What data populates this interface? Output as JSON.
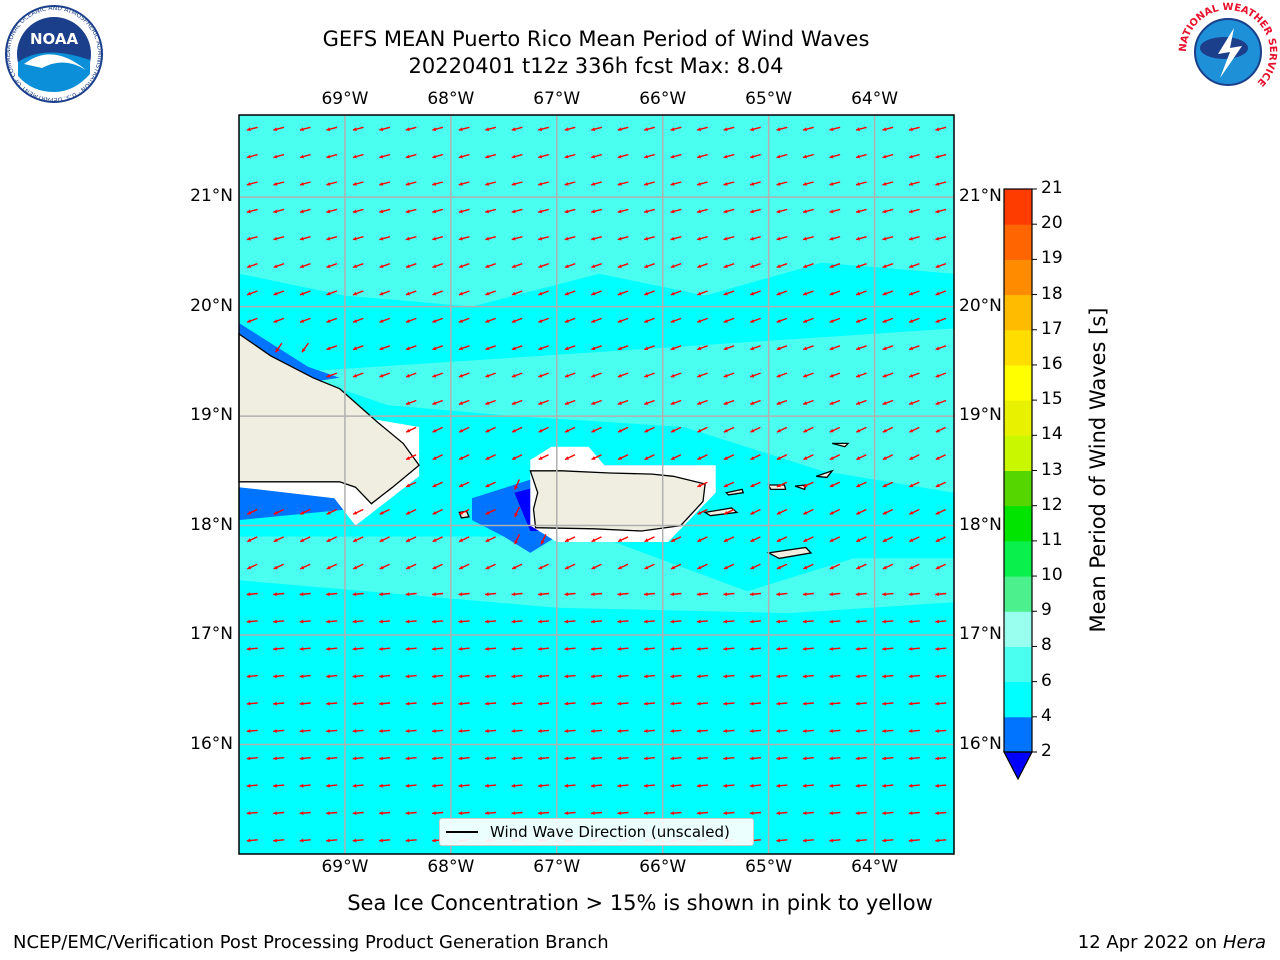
{
  "header": {
    "title_line1": "GEFS MEAN Puerto Rico Mean Period of Wind Waves",
    "title_line2": "20220401 t12z 336h fcst   Max: 8.04"
  },
  "logos": {
    "left": "NOAA",
    "left_ring": "NATIONAL OCEANIC AND ATMOSPHERIC ADMINISTRATION · U.S. DEPARTMENT OF COMMERCE",
    "right_ring": "NATIONAL WEATHER SERVICE"
  },
  "map": {
    "lon_labels": [
      "69°W",
      "68°W",
      "67°W",
      "66°W",
      "65°W",
      "64°W"
    ],
    "lat_labels": [
      "21°N",
      "20°N",
      "19°N",
      "18°N",
      "17°N",
      "16°N"
    ],
    "lon_range": [
      -70.0,
      -63.25
    ],
    "lat_range": [
      15.0,
      21.75
    ],
    "arrow_color": "#ff0000",
    "land_color": "#efeee0",
    "ocean_color": "#00ffff",
    "legend_label": "Wind Wave Direction (unscaled)"
  },
  "colorbar": {
    "title": "Mean Period of Wind Waves [s]",
    "ticks": [
      "2",
      "4",
      "6",
      "8",
      "9",
      "10",
      "11",
      "12",
      "13",
      "14",
      "15",
      "16",
      "17",
      "18",
      "19",
      "20",
      "21"
    ],
    "levels": [
      2,
      4,
      6,
      8,
      9,
      10,
      11,
      12,
      13,
      14,
      15,
      16,
      17,
      18,
      19,
      20,
      21
    ],
    "colors": [
      "#0073ff",
      "#00ffff",
      "#4bfff0",
      "#99ffee",
      "#4cf08c",
      "#09f04c",
      "#00e400",
      "#55d600",
      "#c8f700",
      "#e8f200",
      "#ffff00",
      "#ffdd00",
      "#ffbb00",
      "#ff8c00",
      "#ff6500",
      "#ff3c00",
      "#ff0000"
    ],
    "under_color": "#0000ff"
  },
  "footer": {
    "ice_note": "Sea Ice Concentration > 15% is shown in pink to yellow",
    "left": "NCEP/EMC/Verification Post Processing Product Generation Branch",
    "right_date": "12 Apr 2022 on ",
    "right_host": "Hera"
  }
}
